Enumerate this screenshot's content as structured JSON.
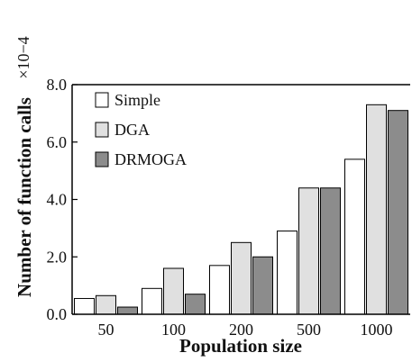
{
  "chart_data": {
    "type": "bar",
    "categories": [
      "50",
      "100",
      "200",
      "500",
      "1000"
    ],
    "series": [
      {
        "name": "Simple",
        "values": [
          0.55,
          0.9,
          1.7,
          2.9,
          5.4
        ],
        "color": "#ffffff"
      },
      {
        "name": "DGA",
        "values": [
          0.65,
          1.6,
          2.5,
          4.4,
          7.3
        ],
        "color": "#e0e0e0"
      },
      {
        "name": "DRMOGA",
        "values": [
          0.25,
          0.7,
          2.0,
          4.4,
          7.1
        ],
        "color": "#8c8c8c"
      }
    ],
    "title": "",
    "xlabel": "Population size",
    "ylabel": "Number of function calls",
    "ylabel_multiplier": "×10−4",
    "ylim": [
      0,
      8.0
    ],
    "yticks": [
      "0.0",
      "2.0",
      "4.0",
      "6.0",
      "8.0"
    ],
    "grid": false,
    "legend_position": "top-left"
  }
}
